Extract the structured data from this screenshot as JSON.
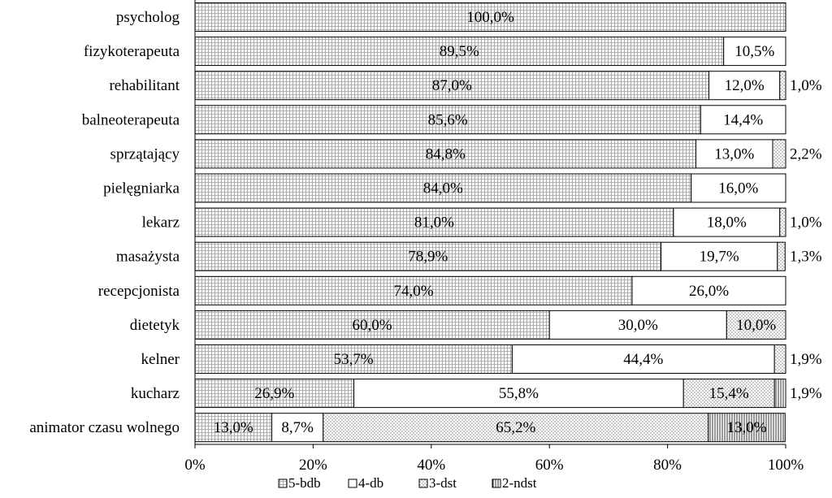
{
  "chart_data": {
    "type": "bar",
    "orientation": "horizontal",
    "stacked": true,
    "normalized_percent": true,
    "categories": [
      "psycholog",
      "fizykoterapeuta",
      "rehabilitant",
      "balneoterapeuta",
      "sprzątający",
      "pielęgniarka",
      "lekarz",
      "masażysta",
      "recepcjonista",
      "dietetyk",
      "kelner",
      "kucharz",
      "animator czasu wolnego"
    ],
    "series": [
      {
        "name": "5-bdb",
        "pattern": "grid",
        "values": [
          100.0,
          89.5,
          87.0,
          85.6,
          84.8,
          84.0,
          81.0,
          78.9,
          74.0,
          60.0,
          53.7,
          26.9,
          13.0
        ]
      },
      {
        "name": "4-db",
        "pattern": "white",
        "values": [
          0,
          10.5,
          12.0,
          14.4,
          13.0,
          16.0,
          18.0,
          19.7,
          26.0,
          30.0,
          44.4,
          55.8,
          8.7
        ]
      },
      {
        "name": "3-dst",
        "pattern": "dots",
        "values": [
          0,
          0,
          1.0,
          0,
          2.2,
          0,
          1.0,
          1.3,
          0,
          10.0,
          1.9,
          15.4,
          65.2
        ]
      },
      {
        "name": "2-ndst",
        "pattern": "vlines",
        "values": [
          0,
          0,
          0,
          0,
          0,
          0,
          0,
          0,
          0,
          0,
          0,
          1.9,
          13.0
        ]
      }
    ],
    "data_labels": [
      [
        "100,0%"
      ],
      [
        "89,5%",
        "10,5%"
      ],
      [
        "87,0%",
        "12,0%",
        "1,0%"
      ],
      [
        "85,6%",
        "14,4%"
      ],
      [
        "84,8%",
        "13,0%",
        "2,2%"
      ],
      [
        "84,0%",
        "16,0%"
      ],
      [
        "81,0%",
        "18,0%",
        "1,0%"
      ],
      [
        "78,9%",
        "19,7%",
        "1,3%"
      ],
      [
        "74,0%",
        "26,0%"
      ],
      [
        "60,0%",
        "30,0%",
        "10,0%"
      ],
      [
        "53,7%",
        "44,4%",
        "1,9%"
      ],
      [
        "26,9%",
        "55,8%",
        "15,4%",
        "1,9%"
      ],
      [
        "13,0%",
        "8,7%",
        "65,2%",
        "13,0%"
      ]
    ],
    "xlim": [
      0,
      100
    ],
    "x_ticks": [
      "0%",
      "20%",
      "40%",
      "60%",
      "80%",
      "100%"
    ],
    "legend_position": "bottom",
    "grid": false
  }
}
